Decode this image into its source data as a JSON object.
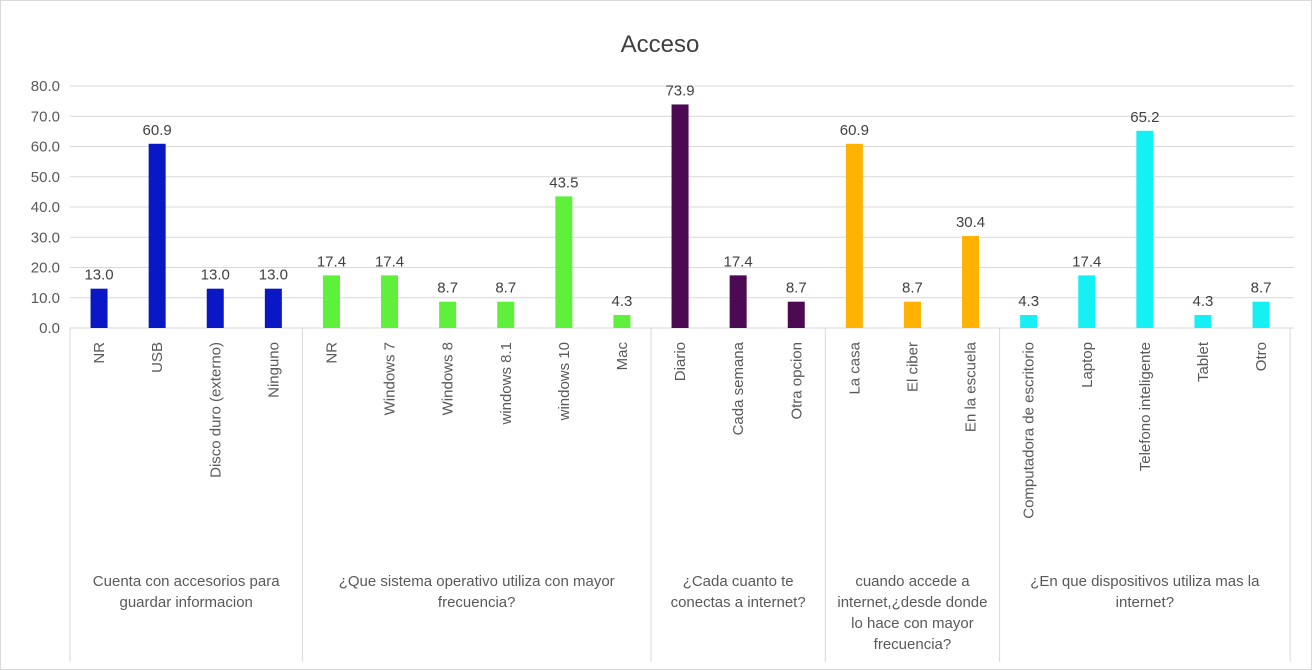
{
  "chart_data": {
    "type": "bar",
    "title": "Acceso",
    "ylim": [
      0,
      80
    ],
    "yticks": [
      "0.0",
      "10.0",
      "20.0",
      "30.0",
      "40.0",
      "50.0",
      "60.0",
      "70.0",
      "80.0"
    ],
    "grid": true,
    "legend": "none",
    "groups": [
      {
        "label": "Cuenta con accesorios para guardar informacion",
        "label_lines": [
          "Cuenta con accesorios para",
          "guardar informacion"
        ],
        "color": "#0a17c4",
        "categories": [
          "NR",
          "USB",
          "Disco duro (externo)",
          "Ninguno"
        ],
        "values": [
          13.0,
          60.9,
          13.0,
          13.0
        ],
        "labels": [
          "13.0",
          "60.9",
          "13.0",
          "13.0"
        ]
      },
      {
        "label": "¿Que sistema operativo utiliza con mayor frecuencia?",
        "label_lines": [
          "¿Que sistema operativo utiliza con mayor",
          "frecuencia?"
        ],
        "color": "#5ef03a",
        "categories": [
          "NR",
          "Windows 7",
          "Windows 8",
          "windows 8.1",
          "windows 10",
          "Mac"
        ],
        "values": [
          17.4,
          17.4,
          8.7,
          8.7,
          43.5,
          4.3
        ],
        "labels": [
          "17.4",
          "17.4",
          "8.7",
          "8.7",
          "43.5",
          "4.3"
        ]
      },
      {
        "label": "¿Cada cuanto te conectas a internet?",
        "label_lines": [
          "¿Cada cuanto te",
          "conectas a internet?"
        ],
        "color": "#4b0a52",
        "categories": [
          "Diario",
          "Cada semana",
          "Otra opcion"
        ],
        "values": [
          73.9,
          17.4,
          8.7
        ],
        "labels": [
          "73.9",
          "17.4",
          "8.7"
        ]
      },
      {
        "label": "cuando accede a internet,¿desde donde lo hace con mayor frecuencia?",
        "label_lines": [
          "cuando accede a",
          "internet,¿desde donde",
          "lo hace con mayor",
          "frecuencia?"
        ],
        "color": "#ffb300",
        "categories": [
          "La casa",
          "El ciber",
          "En la escuela"
        ],
        "values": [
          60.9,
          8.7,
          30.4
        ],
        "labels": [
          "60.9",
          "8.7",
          "30.4"
        ]
      },
      {
        "label": "¿En que dispositivos utiliza mas la internet?",
        "label_lines": [
          "¿En que dispositivos utiliza mas la",
          "internet?"
        ],
        "color": "#14f0f4",
        "categories": [
          "Computadora de escritorio",
          "Laptop",
          "Telefono inteligente",
          "Tablet",
          "Otro"
        ],
        "values": [
          4.3,
          17.4,
          65.2,
          4.3,
          8.7
        ],
        "labels": [
          "4.3",
          "17.4",
          "65.2",
          "4.3",
          "8.7"
        ]
      }
    ]
  }
}
